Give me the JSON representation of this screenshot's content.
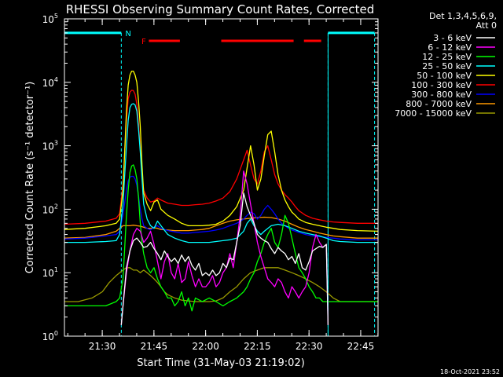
{
  "chart_data": {
    "type": "line",
    "title": "RHESSI Observing Summary Count Rates, Corrected",
    "xlabel": "Start Time (31-May-03 21:19:02)",
    "ylabel": "Corrected Count Rate (s⁻¹ detector⁻¹)",
    "footer": "18-Oct-2021 23:52",
    "x_unit": "minutes after 21:19:02",
    "xlim": [
      0,
      91.0
    ],
    "ylim": [
      1,
      100000
    ],
    "y_scale": "log",
    "x_ticks": [
      {
        "x": 10.97,
        "label": "21:30"
      },
      {
        "x": 25.97,
        "label": "21:45"
      },
      {
        "x": 40.97,
        "label": "22:00"
      },
      {
        "x": 55.97,
        "label": "22:15"
      },
      {
        "x": 70.97,
        "label": "22:30"
      },
      {
        "x": 85.97,
        "label": "22:45"
      }
    ],
    "y_ticks": [
      {
        "value": 1,
        "base": "10",
        "exp": "0"
      },
      {
        "value": 10,
        "base": "10",
        "exp": "1"
      },
      {
        "value": 100,
        "base": "10",
        "exp": "2"
      },
      {
        "value": 1000,
        "base": "10",
        "exp": "3"
      },
      {
        "value": 10000,
        "base": "10",
        "exp": "4"
      },
      {
        "value": 100000,
        "base": "10",
        "exp": "5"
      }
    ],
    "grid": false,
    "legend": {
      "position": "top-right",
      "header": [
        "Det 1,3,4,5,6,9,",
        "Att 0"
      ]
    },
    "annotations": [
      {
        "text": "N",
        "x": 18.5,
        "y": 60000,
        "color": "#00ffff"
      },
      {
        "text": "F",
        "x": 23.0,
        "y": 45000,
        "color": "#ff0000"
      }
    ],
    "orbit_day": [
      [
        0,
        16.5
      ],
      [
        76.5,
        90.0
      ]
    ],
    "night_markers": [
      16.5,
      76.5,
      90.0
    ],
    "flare_flags": [
      [
        24.5,
        33.5
      ],
      [
        45.5,
        66.5
      ],
      [
        69.5,
        74.5
      ]
    ],
    "series": [
      {
        "name": "3 - 6 keV",
        "color": "#ffffff",
        "x": [
          16.5,
          17,
          18,
          19,
          20,
          21,
          22,
          23,
          24,
          25,
          26,
          27,
          28,
          29,
          30,
          31,
          32,
          33,
          34,
          35,
          36,
          37,
          38,
          39,
          40,
          41,
          42,
          43,
          44,
          45,
          46,
          47,
          48,
          49,
          50,
          51,
          52,
          53,
          54,
          55,
          56,
          57,
          58,
          59,
          60,
          61,
          62,
          63,
          64,
          65,
          66,
          67,
          68,
          69,
          70,
          71,
          72,
          73,
          74,
          75,
          76,
          76.5
        ],
        "y": [
          1.5,
          3,
          12,
          22,
          32,
          35,
          30,
          25,
          26,
          30,
          24,
          20,
          16,
          22,
          18,
          15,
          17,
          14,
          19,
          15,
          18,
          13,
          11,
          14,
          9,
          10,
          9,
          11,
          9,
          10,
          14,
          12,
          17,
          16,
          30,
          55,
          180,
          110,
          80,
          60,
          40,
          35,
          32,
          30,
          24,
          20,
          25,
          22,
          20,
          16,
          18,
          14,
          20,
          12,
          11,
          15,
          22,
          24,
          26,
          25,
          28,
          1.5
        ]
      },
      {
        "name": "6 - 12 keV",
        "color": "#ff00ff",
        "x": [
          16.5,
          17,
          18,
          19,
          20,
          21,
          22,
          23,
          24,
          25,
          26,
          27,
          28,
          29,
          30,
          31,
          32,
          33,
          34,
          35,
          36,
          37,
          38,
          39,
          40,
          41,
          42,
          43,
          44,
          45,
          46,
          47,
          48,
          49,
          50,
          51,
          52,
          53,
          54,
          55,
          56,
          57,
          58,
          59,
          60,
          61,
          62,
          63,
          64,
          65,
          66,
          67,
          68,
          69,
          70,
          71,
          72,
          73,
          74,
          75,
          76,
          76.5
        ],
        "y": [
          1.5,
          3,
          10,
          22,
          40,
          50,
          45,
          30,
          35,
          45,
          28,
          15,
          8,
          15,
          20,
          10,
          8,
          14,
          7,
          8,
          15,
          9,
          6,
          8,
          6,
          6,
          7,
          9,
          6,
          7,
          10,
          12,
          20,
          12,
          30,
          80,
          400,
          250,
          120,
          60,
          30,
          18,
          12,
          8,
          7,
          6,
          8,
          7,
          5,
          4,
          6,
          5,
          4,
          5,
          6,
          10,
          25,
          40,
          30,
          25,
          28,
          1.5
        ]
      },
      {
        "name": "12 - 25 keV",
        "color": "#00ff00",
        "x": [
          0,
          6,
          12,
          15,
          16,
          17,
          17.5,
          18,
          18.5,
          19,
          19.5,
          20,
          20.5,
          21,
          21.5,
          22,
          22.5,
          23,
          24,
          25,
          26,
          27,
          28,
          29,
          30,
          31,
          32,
          33,
          34,
          35,
          36,
          37,
          38,
          40,
          42,
          44,
          46,
          48,
          50,
          52,
          53,
          54,
          55,
          56,
          57,
          58,
          59,
          60,
          61,
          62,
          63,
          64,
          65,
          66,
          67,
          68,
          69,
          70,
          71,
          72,
          73,
          74,
          75,
          76,
          76.5,
          78,
          80,
          85,
          91
        ],
        "y": [
          3,
          3,
          3,
          3.5,
          4,
          8,
          25,
          80,
          200,
          380,
          480,
          500,
          420,
          300,
          150,
          60,
          30,
          20,
          12,
          10,
          12,
          8,
          6,
          5,
          4,
          4,
          3,
          3.5,
          5,
          3,
          4,
          2.5,
          4,
          3.5,
          4,
          3.5,
          3,
          3.5,
          4,
          5,
          6,
          8,
          10,
          15,
          20,
          30,
          40,
          50,
          30,
          25,
          40,
          80,
          60,
          35,
          20,
          12,
          10,
          8,
          6,
          5,
          4,
          4,
          3.5,
          3.5,
          3.5,
          3.5,
          3.5,
          3.5,
          3.5
        ]
      },
      {
        "name": "25 - 50 keV",
        "color": "#00ffff",
        "x": [
          0,
          6,
          12,
          15,
          16,
          17,
          18,
          18.5,
          19,
          19.5,
          20,
          20.5,
          21,
          21.5,
          22,
          22.5,
          23,
          24,
          25,
          26,
          27,
          28,
          30,
          32,
          34,
          36,
          38,
          40,
          42,
          44,
          46,
          48,
          50,
          52,
          53,
          54,
          55,
          56,
          57,
          58,
          60,
          62,
          64,
          66,
          68,
          70,
          72,
          74,
          76,
          78,
          80,
          85,
          91
        ],
        "y": [
          30,
          30,
          31,
          32,
          40,
          120,
          1000,
          2500,
          4000,
          4500,
          4600,
          4400,
          3500,
          1800,
          800,
          300,
          120,
          70,
          55,
          50,
          65,
          55,
          40,
          35,
          32,
          30,
          30,
          30,
          30,
          31,
          32,
          33,
          35,
          45,
          60,
          70,
          55,
          45,
          40,
          45,
          55,
          58,
          55,
          50,
          45,
          42,
          40,
          38,
          35,
          32,
          31,
          30,
          30
        ]
      },
      {
        "name": "50 - 100 keV",
        "color": "#ffff00",
        "x": [
          0,
          6,
          12,
          15,
          16,
          17,
          18,
          18.5,
          19,
          19.5,
          20,
          20.5,
          21,
          21.5,
          22,
          22.5,
          23,
          24,
          25,
          26,
          27,
          28,
          30,
          32,
          34,
          36,
          38,
          40,
          42,
          44,
          46,
          48,
          50,
          52,
          53,
          54,
          55,
          56,
          57,
          58,
          59,
          60,
          61,
          62,
          63,
          64,
          65,
          66,
          67,
          68,
          70,
          72,
          74,
          76,
          78,
          80,
          85,
          91
        ],
        "y": [
          48,
          50,
          55,
          60,
          70,
          200,
          3500,
          9000,
          13000,
          15000,
          15000,
          13000,
          10000,
          5000,
          2000,
          500,
          180,
          120,
          95,
          130,
          140,
          100,
          80,
          70,
          60,
          55,
          55,
          55,
          56,
          58,
          65,
          80,
          110,
          200,
          450,
          1000,
          500,
          200,
          300,
          700,
          1500,
          1700,
          800,
          350,
          200,
          140,
          110,
          90,
          80,
          70,
          62,
          58,
          55,
          52,
          50,
          48,
          46,
          45
        ]
      },
      {
        "name": "100 - 300 keV",
        "color": "#ff0000",
        "x": [
          0,
          6,
          12,
          15,
          16,
          17,
          18,
          18.5,
          19,
          19.5,
          20,
          20.5,
          21,
          21.5,
          22,
          22.5,
          23,
          24,
          25,
          26,
          27,
          28,
          30,
          32,
          34,
          36,
          38,
          40,
          42,
          44,
          46,
          48,
          50,
          52,
          53,
          54,
          55,
          56,
          57,
          58,
          59,
          60,
          61,
          62,
          63,
          64,
          65,
          66,
          67,
          68,
          70,
          72,
          74,
          76,
          78,
          80,
          85,
          91
        ],
        "y": [
          58,
          60,
          65,
          72,
          85,
          250,
          2500,
          5500,
          7000,
          7500,
          7400,
          6500,
          4500,
          2200,
          900,
          350,
          200,
          150,
          130,
          135,
          150,
          140,
          125,
          120,
          115,
          115,
          118,
          120,
          125,
          135,
          150,
          190,
          300,
          600,
          850,
          500,
          300,
          250,
          400,
          800,
          1000,
          600,
          350,
          250,
          200,
          170,
          150,
          130,
          110,
          95,
          80,
          72,
          68,
          65,
          63,
          62,
          60,
          60
        ]
      },
      {
        "name": "300 - 800 keV",
        "color": "#0000ff",
        "x": [
          0,
          6,
          12,
          15,
          16,
          17,
          18,
          18.5,
          19,
          19.5,
          20,
          20.5,
          21,
          21.5,
          22,
          22.5,
          23,
          24,
          25,
          26,
          27,
          28,
          30,
          32,
          34,
          36,
          38,
          40,
          42,
          44,
          46,
          48,
          50,
          52,
          53,
          54,
          55,
          56,
          57,
          58,
          59,
          60,
          61,
          62,
          63,
          64,
          65,
          66,
          67,
          68,
          70,
          72,
          74,
          76,
          78,
          80,
          85,
          91
        ],
        "y": [
          34,
          35,
          38,
          40,
          45,
          80,
          200,
          280,
          320,
          330,
          330,
          300,
          240,
          160,
          100,
          70,
          55,
          50,
          47,
          52,
          55,
          50,
          46,
          44,
          42,
          42,
          43,
          44,
          45,
          47,
          50,
          55,
          60,
          70,
          80,
          90,
          85,
          70,
          80,
          100,
          115,
          100,
          85,
          70,
          60,
          55,
          50,
          47,
          45,
          43,
          40,
          38,
          37,
          36,
          35,
          34,
          33,
          33
        ]
      },
      {
        "name": "800 - 7000 keV",
        "color": "#ff9900",
        "x": [
          0,
          6,
          12,
          15,
          16,
          17,
          18,
          19,
          20,
          21,
          22,
          23,
          24,
          25,
          26,
          27,
          28,
          30,
          32,
          34,
          36,
          38,
          40,
          42,
          44,
          46,
          48,
          50,
          52,
          54,
          56,
          58,
          60,
          62,
          64,
          66,
          68,
          70,
          72,
          74,
          76,
          78,
          80,
          85,
          91
        ],
        "y": [
          35,
          36,
          40,
          45,
          50,
          55,
          55,
          55,
          56,
          55,
          54,
          52,
          50,
          50,
          51,
          50,
          48,
          47,
          46,
          46,
          46,
          47,
          48,
          50,
          55,
          60,
          65,
          68,
          70,
          72,
          74,
          75,
          74,
          70,
          65,
          58,
          52,
          48,
          45,
          42,
          40,
          38,
          37,
          35,
          35
        ]
      },
      {
        "name": "7000 - 15000 keV",
        "color": "#999900",
        "x": [
          0,
          4,
          8,
          11,
          13,
          15,
          17,
          18,
          19,
          20,
          21,
          22,
          23,
          24,
          25,
          26,
          27,
          28,
          29,
          30,
          32,
          34,
          36,
          38,
          40,
          42,
          44,
          46,
          48,
          50,
          52,
          54,
          56,
          58,
          60,
          62,
          64,
          66,
          68,
          70,
          72,
          74,
          76,
          78,
          80,
          85,
          91
        ],
        "y": [
          3.5,
          3.5,
          4,
          5,
          7,
          9,
          11,
          12,
          12,
          11,
          11,
          10,
          11,
          10,
          9,
          8,
          7,
          6,
          5,
          4.5,
          4,
          3.7,
          3.6,
          3.5,
          3.5,
          3.5,
          3.6,
          4,
          5,
          6,
          8,
          10,
          11,
          12,
          12,
          12,
          11,
          10,
          9,
          8,
          7,
          6,
          5,
          4,
          3.5,
          3.5,
          3.5
        ]
      }
    ]
  }
}
